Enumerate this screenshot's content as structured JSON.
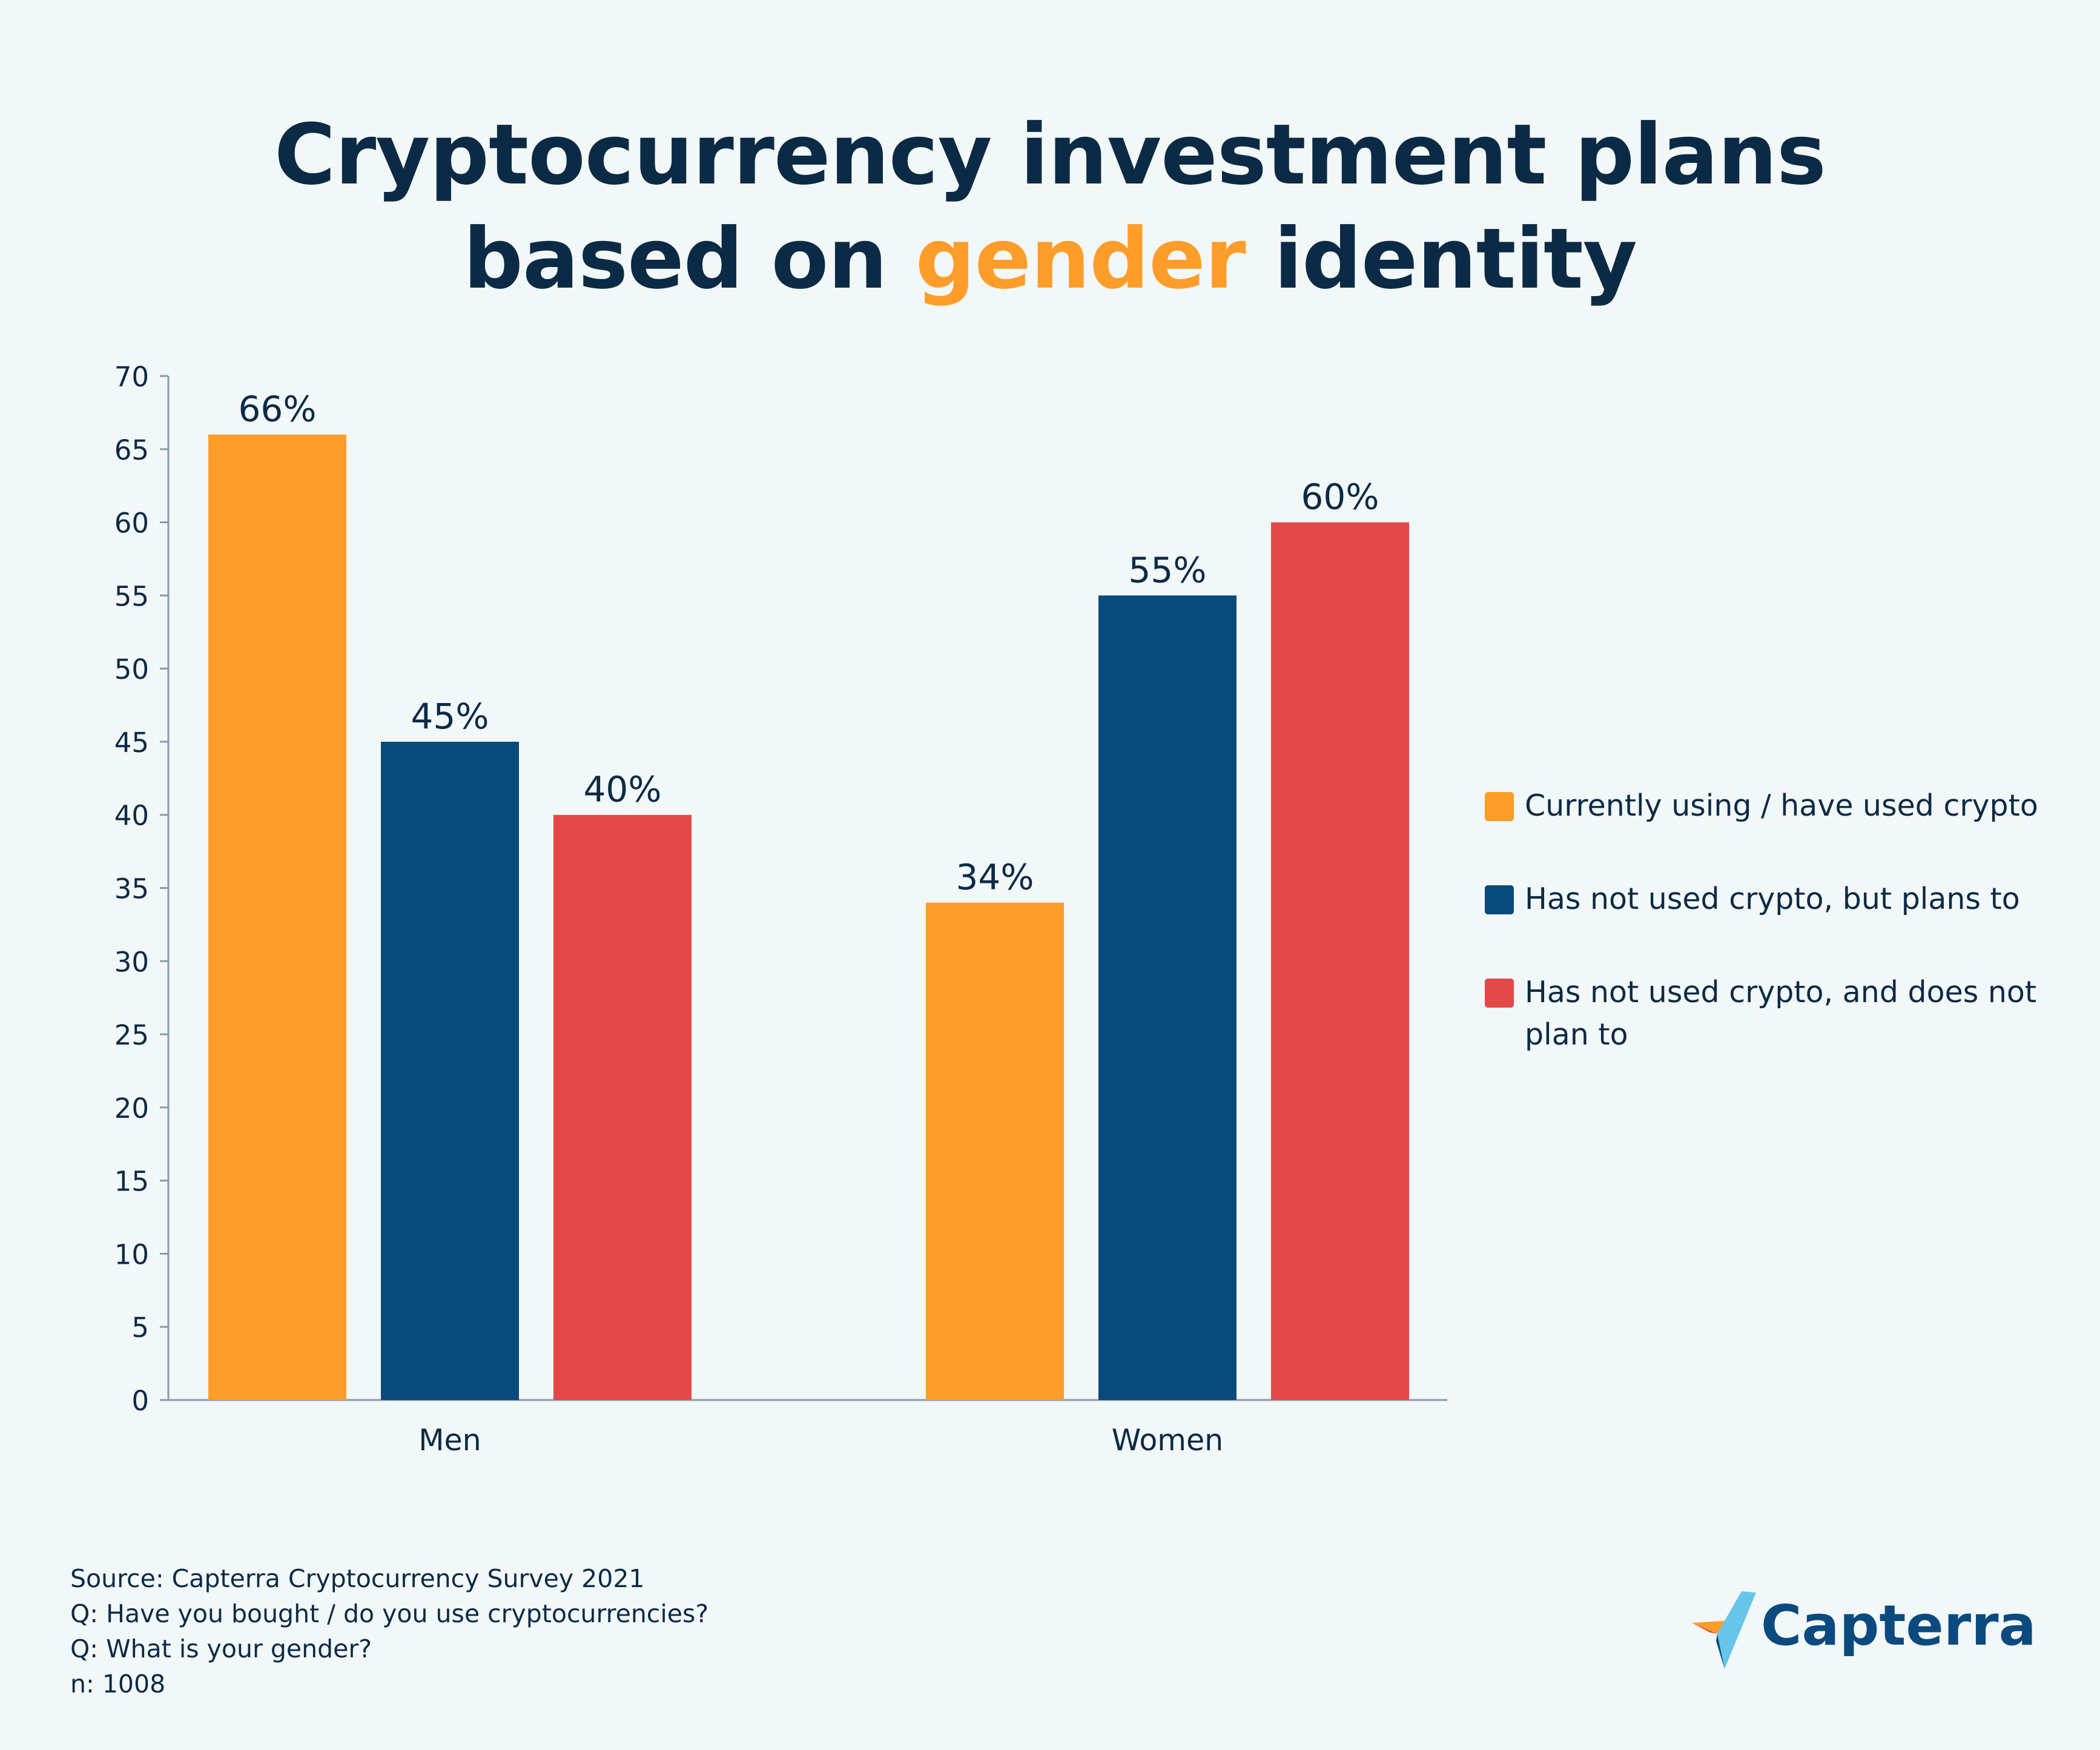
{
  "title": {
    "before": "Cryptocurrency investment plans",
    "line2_before": "based on ",
    "highlight": "gender",
    "line2_after": " identity"
  },
  "colors": {
    "background": "#f2f7f7",
    "text": "#0b2a45",
    "accent": "#ff9d2a",
    "series": [
      "#ff9d2a",
      "#084a7b",
      "#e54848"
    ]
  },
  "chart_data": {
    "type": "bar",
    "categories": [
      "Men",
      "Women"
    ],
    "series": [
      {
        "name": "Currently using / have used crypto",
        "values": [
          66,
          34
        ],
        "labels": [
          "66%",
          "34%"
        ]
      },
      {
        "name": "Has not used crypto, but plans to",
        "values": [
          45,
          55
        ],
        "labels": [
          "45%",
          "55%"
        ]
      },
      {
        "name": "Has not used crypto, and does not plan to",
        "values": [
          40,
          60
        ],
        "labels": [
          "40%",
          "60%"
        ]
      }
    ],
    "ylim": [
      0,
      70
    ],
    "yticks": [
      0,
      5,
      10,
      15,
      20,
      25,
      30,
      35,
      40,
      45,
      50,
      55,
      60,
      65,
      70
    ],
    "xlabel": "",
    "ylabel": "",
    "grid": false,
    "legend_position": "right"
  },
  "legend": {
    "items": [
      {
        "label": "Currently using / have used crypto"
      },
      {
        "label": "Has not used crypto, but plans to"
      },
      {
        "label": "Has not used crypto, and does not plan to"
      }
    ]
  },
  "source": {
    "line1": "Source: Capterra Cryptocurrency Survey 2021",
    "line2": "Q: Have you bought / do you use cryptocurrencies?",
    "line3": "Q: What is your gender?",
    "line4": "n: 1008"
  },
  "logo": {
    "text": "Capterra",
    "icon": "capterra-arrow-icon"
  }
}
